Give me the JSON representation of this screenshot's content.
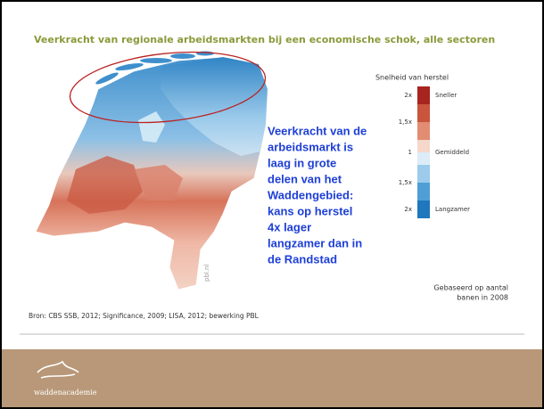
{
  "title": "Veerkracht van regionale arbeidsmarkten bij een economische schok, alle sectoren",
  "legend": {
    "title": "Snelheid van herstel",
    "scale_labels": [
      "2x",
      "1,5x",
      "1",
      "1,5x",
      "2x"
    ],
    "class_labels": [
      "Sneller",
      "Gemiddeld",
      "Langzamer"
    ]
  },
  "annotation": [
    "Veerkracht van de",
    "arbeidsmarkt is",
    "laag in grote",
    "delen van het",
    "Waddengebied:",
    "kans op herstel",
    "4x lager",
    "langzamer dan in",
    "de Randstad"
  ],
  "note": [
    "Gebaseerd op aantal",
    "banen in 2008"
  ],
  "watermark": "pbl.nl",
  "source": "Bron: CBS SSB, 2012; Significance, 2009; LISA, 2012; bewerking PBL",
  "logo": "waddenacademie"
}
